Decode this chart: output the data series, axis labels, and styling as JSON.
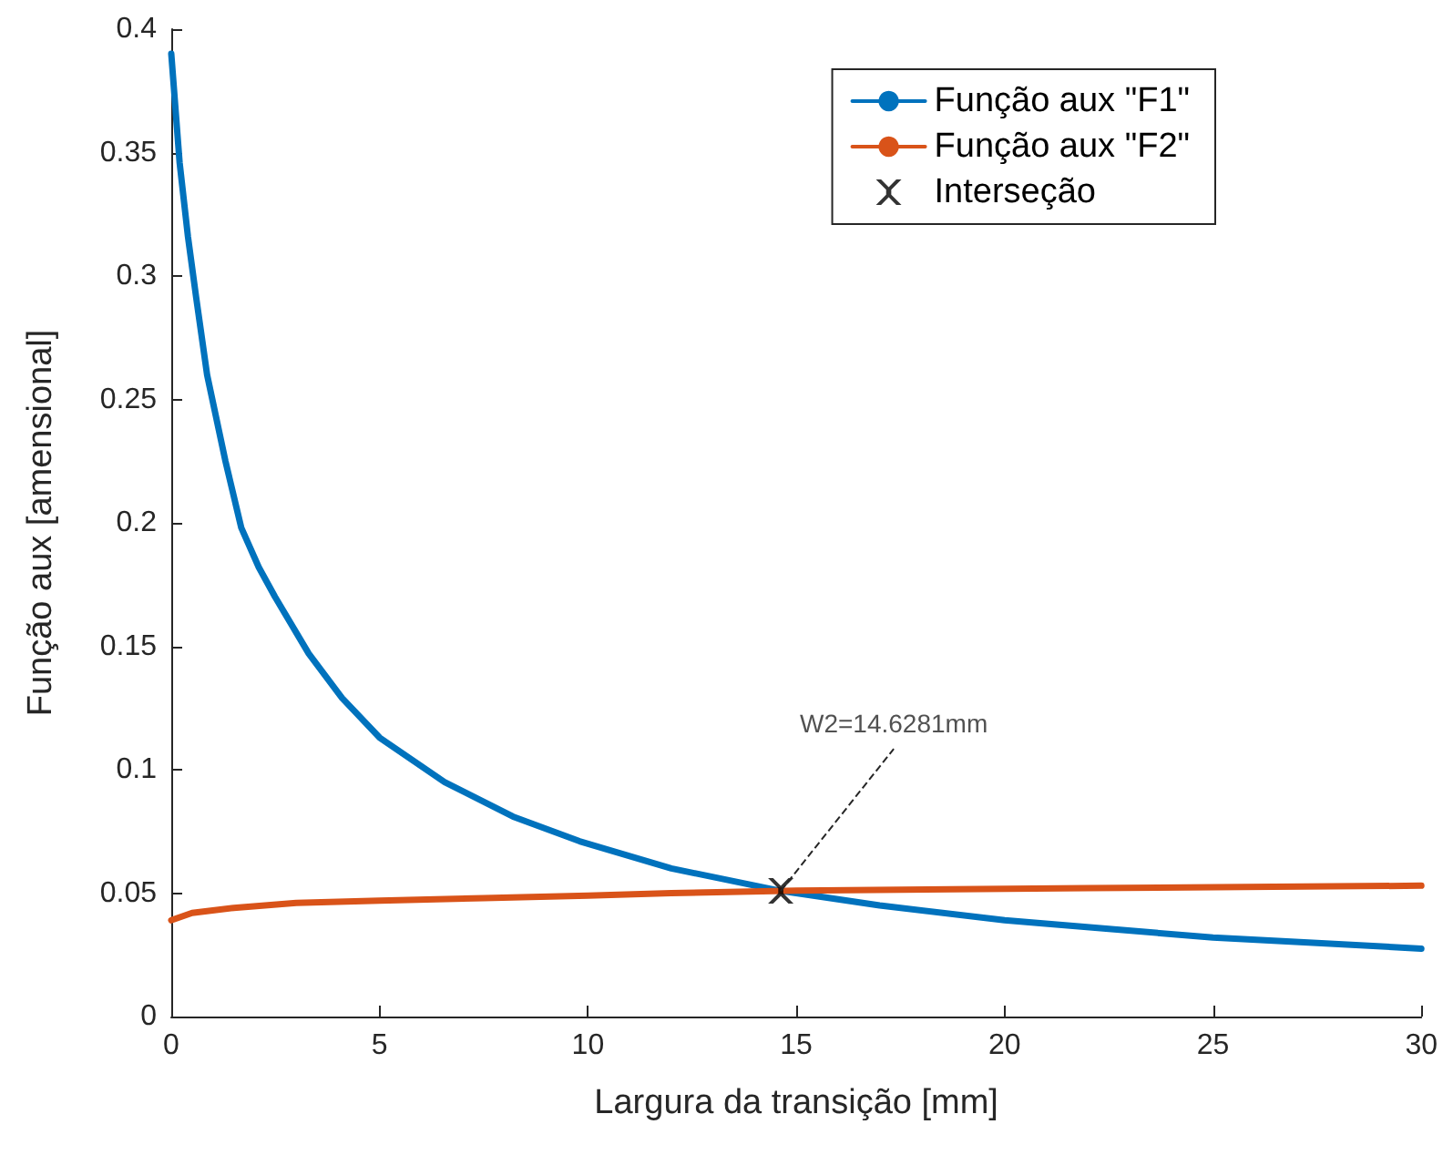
{
  "chart_data": {
    "type": "line",
    "xlabel": "Largura da transição [mm]",
    "ylabel": "Função aux [amensional]",
    "xlim": [
      0,
      30
    ],
    "xticks": [
      0,
      5,
      10,
      15,
      20,
      25,
      30
    ],
    "ylim": [
      0,
      0.4
    ],
    "yticks": [
      0,
      0.05,
      0.1,
      0.15,
      0.2,
      0.25,
      0.3,
      0.35,
      0.4
    ],
    "grid": false,
    "legend": "top right",
    "marker": "none",
    "line_style": "solid",
    "series": [
      {
        "name": "Função aux \"F1\"",
        "color": "#0072bd",
        "x": [
          0,
          0.2,
          0.4,
          0.6,
          0.86,
          1.3,
          1.68,
          2.1,
          2.49,
          3.3,
          4.1,
          5,
          6.56,
          8.2,
          9.8,
          12,
          14.63,
          17,
          20,
          22.5,
          25,
          27.5,
          30
        ],
        "values": [
          0.39,
          0.346,
          0.316,
          0.291,
          0.26,
          0.225,
          0.198,
          0.182,
          0.17,
          0.147,
          0.129,
          0.113,
          0.095,
          0.081,
          0.071,
          0.06,
          0.0509,
          0.045,
          0.039,
          0.0355,
          0.032,
          0.0298,
          0.0275
        ]
      },
      {
        "name": "Função aux \"F2\"",
        "color": "#d95319",
        "x": [
          0,
          0.5,
          1.5,
          3,
          5,
          7.5,
          10,
          12,
          15,
          22,
          30
        ],
        "values": [
          0.039,
          0.042,
          0.044,
          0.046,
          0.047,
          0.048,
          0.049,
          0.05,
          0.051,
          0.052,
          0.053
        ]
      },
      {
        "name": "Interseção",
        "type": "scatter",
        "marker": "cross",
        "color": "#000000",
        "x": [
          14.6281
        ],
        "values": [
          0.0509
        ]
      }
    ],
    "annotations": [
      {
        "text": "W2=14.6281mm",
        "x": 14.6281,
        "y": 0.0509
      }
    ]
  }
}
